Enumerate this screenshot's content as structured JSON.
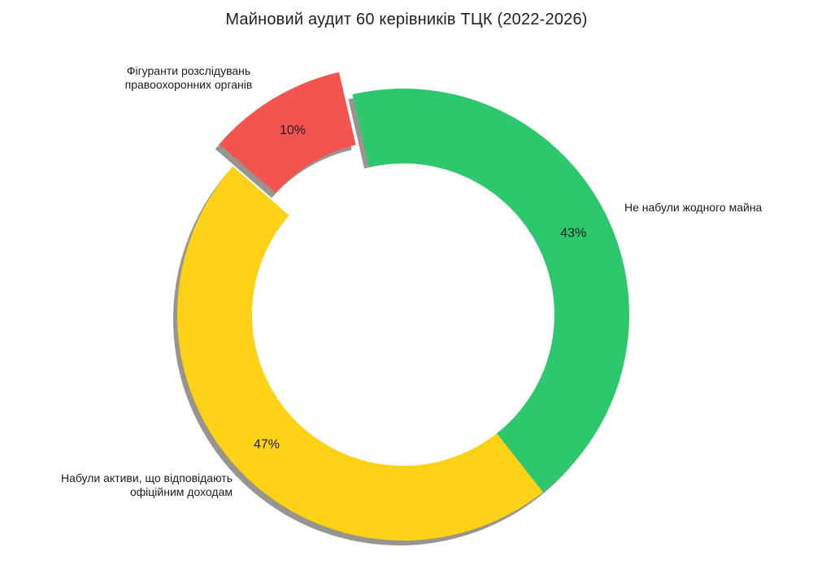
{
  "chart_data": {
    "type": "pie",
    "donut": true,
    "title": "Майновий аудит 60 керівників ТЦК (2022-2026)",
    "unit": "%",
    "total": 100,
    "start_angle_deg": -13,
    "legend_position": "outside-callouts",
    "slices": [
      {
        "id": "no-assets",
        "label": "Не набули жодного майна",
        "value": 43,
        "pct_label": "43%",
        "color": "#2dc76e",
        "explode": false
      },
      {
        "id": "legit-assets",
        "label": "Набули активи, що відповідають офіційним доходам",
        "value": 47,
        "pct_label": "47%",
        "color": "#fcd116",
        "explode": false
      },
      {
        "id": "investigated",
        "label": "Фігуранти розслідувань правоохоронних органів",
        "value": 10,
        "pct_label": "10%",
        "color": "#f4544f",
        "explode": true
      }
    ],
    "callouts": {
      "green": "Не набули жодного майна",
      "yellow": "Набули активи, що відповідають\nофіційним доходам",
      "red": "Фігуранти розслідувань\nправоохоронних органів"
    },
    "style": {
      "shadow_color": "#98948e",
      "pct_label_color": "#1d1d1d",
      "background": "#ffffff"
    }
  }
}
